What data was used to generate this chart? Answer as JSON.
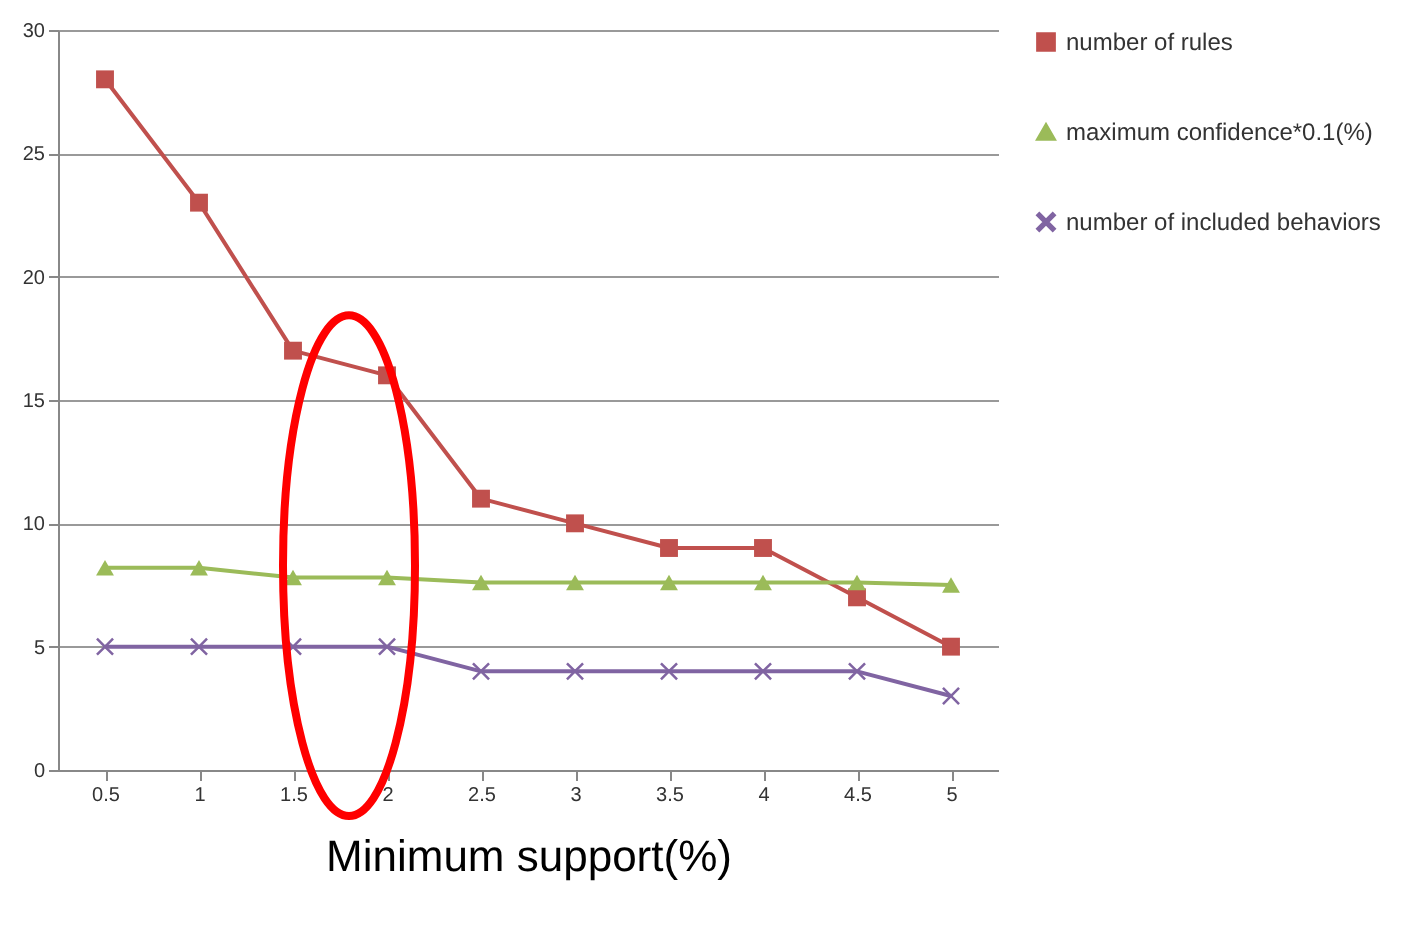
{
  "chart_data": {
    "type": "line",
    "xlabel": "Minimum support(%)",
    "categories": [
      "0.5",
      "1",
      "1.5",
      "2",
      "2.5",
      "3",
      "3.5",
      "4",
      "4.5",
      "5"
    ],
    "series": [
      {
        "name": "number of rules",
        "color": "#c0504d",
        "marker": "square",
        "values": [
          28,
          23,
          17,
          16,
          11,
          10,
          9,
          9,
          7,
          5
        ]
      },
      {
        "name": "maximum confidence*0.1(%)",
        "color": "#9bbb59",
        "marker": "triangle",
        "values": [
          8.2,
          8.2,
          7.8,
          7.8,
          7.6,
          7.6,
          7.6,
          7.6,
          7.6,
          7.5
        ]
      },
      {
        "name": "number of included behaviors",
        "color": "#8064a2",
        "marker": "cross",
        "values": [
          5,
          5,
          5,
          5,
          4,
          4,
          4,
          4,
          4,
          3
        ]
      }
    ],
    "ylim": [
      0,
      30
    ],
    "yticks": [
      0,
      5,
      10,
      15,
      20,
      25,
      30
    ],
    "grid": "y",
    "legend": "right"
  }
}
